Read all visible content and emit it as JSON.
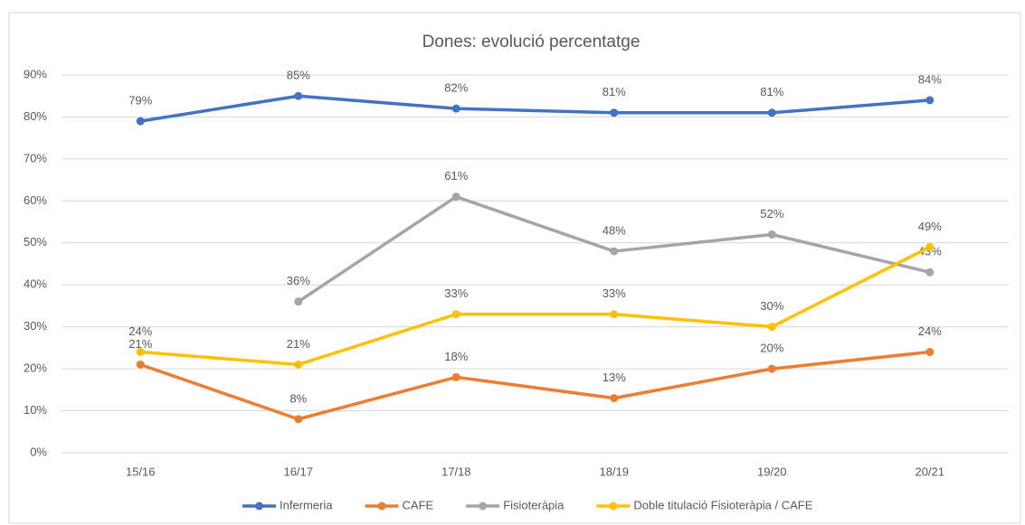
{
  "chart_data": {
    "type": "line",
    "title": "Dones: evolució percentatge",
    "categories": [
      "15/16",
      "16/17",
      "17/18",
      "18/19",
      "19/20",
      "20/21"
    ],
    "series": [
      {
        "name": "Infermeria",
        "color": "#4472c4",
        "values": [
          79,
          85,
          82,
          81,
          81,
          84
        ],
        "value_labels": [
          "79%",
          "85%",
          "82%",
          "81%",
          "81%",
          "84%"
        ]
      },
      {
        "name": "CAFE",
        "color": "#ed7d31",
        "values": [
          21,
          8,
          18,
          13,
          20,
          24
        ],
        "value_labels": [
          "21%",
          "8%",
          "18%",
          "13%",
          "20%",
          "24%"
        ]
      },
      {
        "name": "Fisioteràpia",
        "color": "#a5a5a5",
        "values": [
          null,
          36,
          61,
          48,
          52,
          43
        ],
        "value_labels": [
          null,
          "36%",
          "61%",
          "48%",
          "52%",
          "43%"
        ]
      },
      {
        "name": "Doble titulació Fisioteràpia / CAFE",
        "color": "#ffc000",
        "values": [
          24,
          21,
          33,
          33,
          30,
          49
        ],
        "value_labels": [
          "24%",
          "21%",
          "33%",
          "33%",
          "30%",
          "49%"
        ]
      }
    ],
    "ylim": [
      0,
      90
    ],
    "yticks": [
      {
        "value": 0,
        "label": "0%"
      },
      {
        "value": 10,
        "label": "10%"
      },
      {
        "value": 20,
        "label": "20%"
      },
      {
        "value": 30,
        "label": "30%"
      },
      {
        "value": 40,
        "label": "40%"
      },
      {
        "value": 50,
        "label": "50%"
      },
      {
        "value": 60,
        "label": "60%"
      },
      {
        "value": 70,
        "label": "70%"
      },
      {
        "value": 80,
        "label": "80%"
      },
      {
        "value": 90,
        "label": "90%"
      }
    ],
    "grid": true,
    "legend": "bottom"
  }
}
